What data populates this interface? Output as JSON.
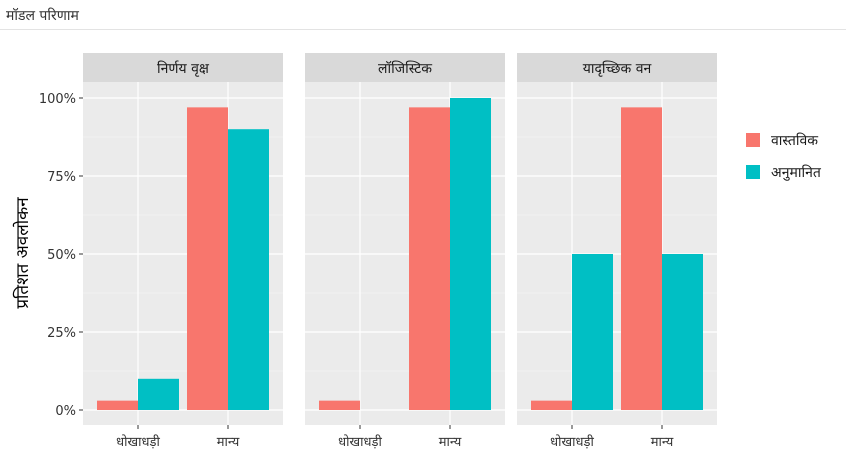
{
  "header": {
    "title": "मॉडल परिणाम"
  },
  "chart_data": {
    "type": "bar",
    "ylabel": "प्रतिशत अवलोकन",
    "xlabel": "",
    "ylim": [
      0,
      1.12
    ],
    "yticks": [
      {
        "value": 0,
        "label": "0%"
      },
      {
        "value": 0.25,
        "label": "25%"
      },
      {
        "value": 0.5,
        "label": "50%"
      },
      {
        "value": 0.75,
        "label": "75%"
      },
      {
        "value": 1,
        "label": "100%"
      }
    ],
    "categories": [
      "धोखाधड़ी",
      "मान्य"
    ],
    "legend": {
      "position": "right"
    },
    "series_style": [
      {
        "name": "वास्तविक",
        "color": "#F8766D"
      },
      {
        "name": "अनुमानित",
        "color": "#00BFC4"
      }
    ],
    "panels": [
      {
        "title": "निर्णय वृक्ष",
        "series": [
          {
            "name": "वास्तविक",
            "values": [
              0.03,
              0.97
            ]
          },
          {
            "name": "अनुमानित",
            "values": [
              0.1,
              0.9
            ]
          }
        ]
      },
      {
        "title": "लॉजिस्टिक",
        "series": [
          {
            "name": "वास्तविक",
            "values": [
              0.03,
              0.97
            ]
          },
          {
            "name": "अनुमानित",
            "values": [
              0.0,
              1.0
            ]
          }
        ]
      },
      {
        "title": "यादृच्छिक वन",
        "series": [
          {
            "name": "वास्तविक",
            "values": [
              0.03,
              0.97
            ]
          },
          {
            "name": "अनुमानित",
            "values": [
              0.5,
              0.5
            ]
          }
        ]
      }
    ]
  }
}
